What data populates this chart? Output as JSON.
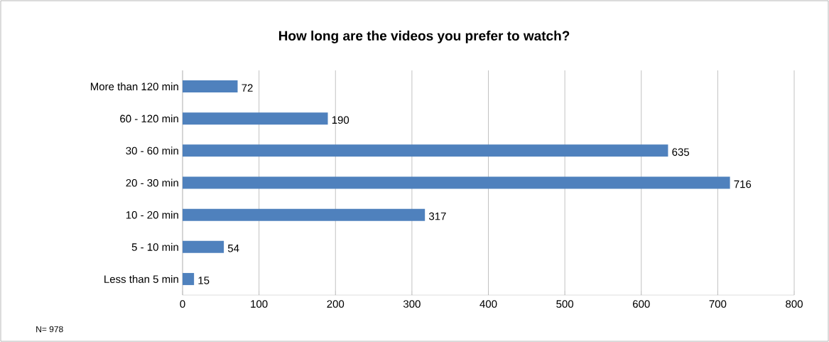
{
  "chart_data": {
    "type": "bar",
    "orientation": "horizontal",
    "title": "How long are the videos you prefer to watch?",
    "categories": [
      "More than 120 min",
      "60 - 120 min",
      "30 - 60 min",
      "20 - 30 min",
      "10 - 20 min",
      "5 - 10 min",
      "Less than 5 min"
    ],
    "values": [
      72,
      190,
      635,
      716,
      317,
      54,
      15
    ],
    "color": "#4f81bd",
    "xlim": [
      0,
      800
    ],
    "xticks": [
      0,
      100,
      200,
      300,
      400,
      500,
      600,
      700,
      800
    ],
    "grid": "x",
    "data_labels": true,
    "annotations": [
      "N= 978"
    ]
  }
}
